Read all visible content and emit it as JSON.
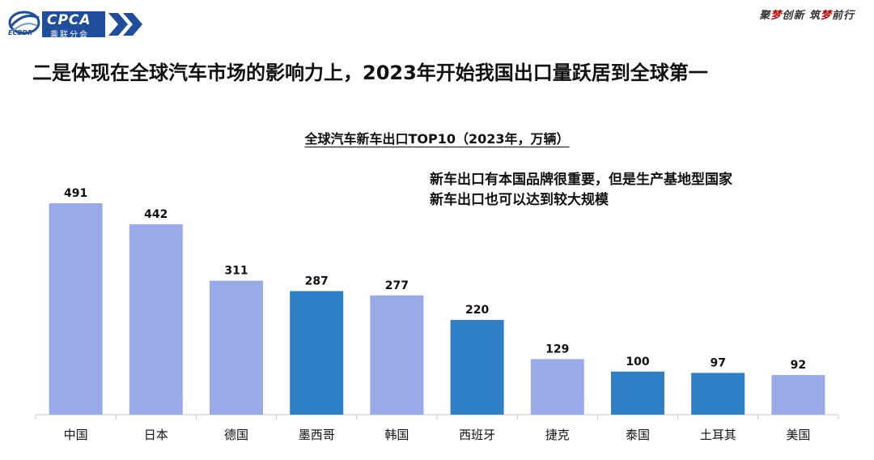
{
  "header": {
    "logo_text": "CPCA",
    "logo_sub": "乘联分会",
    "logo_cn": "ECBDR",
    "slogan_parts": [
      "聚",
      "梦",
      "创新 筑",
      "梦",
      "前行"
    ]
  },
  "headline": "二是体现在全球汽车市场的影响力上，2023年开始我国出口量跃居到全球第一",
  "note": {
    "line1": "新车出口有本国品牌很重要，但是生产基地型国家",
    "line2": "新车出口也可以达到较大规模"
  },
  "colors": {
    "light_bar": "#98aaea",
    "dark_bar": "#2f7fc7",
    "brand": "#1f4e9c"
  },
  "chart_data": {
    "type": "bar",
    "title": "全球汽车新车出口TOP10（2023年，万辆）",
    "categories": [
      "中国",
      "日本",
      "德国",
      "墨西哥",
      "韩国",
      "西班牙",
      "捷克",
      "泰国",
      "土耳其",
      "美国"
    ],
    "values": [
      491,
      442,
      311,
      287,
      277,
      220,
      129,
      100,
      97,
      92
    ],
    "bar_style": [
      "light",
      "light",
      "light",
      "dark",
      "light",
      "dark",
      "light",
      "dark",
      "dark",
      "light"
    ],
    "ylim": [
      0,
      500
    ],
    "grid": false,
    "data_labels": true
  }
}
